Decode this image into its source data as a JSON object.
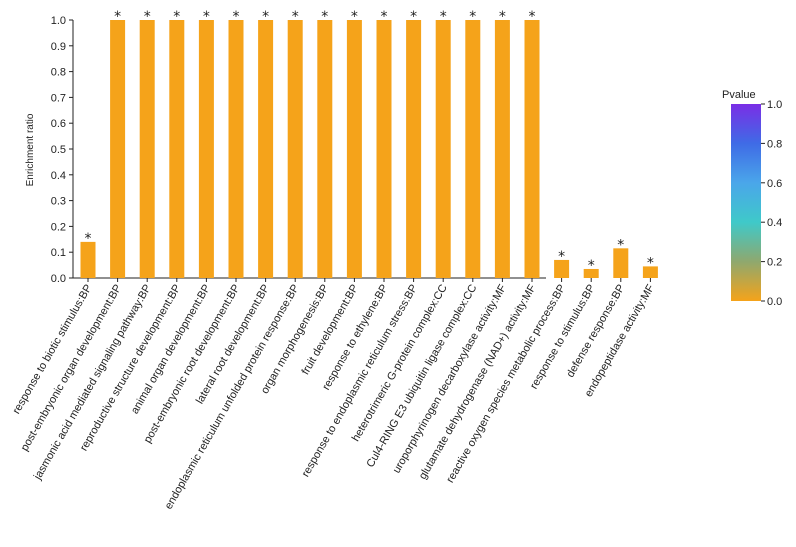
{
  "chart_data": {
    "type": "bar",
    "ylabel": "Enrichment ratio",
    "ylim": [
      0,
      1.0
    ],
    "yticks": [
      "0.0",
      "0.1",
      "0.2",
      "0.3",
      "0.4",
      "0.5",
      "0.6",
      "0.7",
      "0.8",
      "0.9",
      "1.0"
    ],
    "bar_color": "#f5a31a",
    "categories": [
      "response to biotic stimulus:BP",
      "post-embryonic organ development:BP",
      "jasmonic acid mediated signaling pathway:BP",
      "reproductive structure development:BP",
      "animal organ development:BP",
      "post-embryonic root development:BP",
      "lateral root development:BP",
      "endoplasmic reticulum unfolded protein response:BP",
      "organ morphogenesis:BP",
      "fruit development:BP",
      "response to ethylene:BP",
      "response to endoplasmic reticulum stress:BP",
      "heterotrimeric G-protein complex:CC",
      "Cul4-RING E3 ubiquitin ligase complex:CC",
      "uroporphyrinogen decarboxylase activity:MF",
      "glutamate dehydrogenase (NAD+) activity:MF",
      "reactive oxygen species metabolic process:BP",
      "response to stimulus:BP",
      "defense response:BP",
      "endopeptidase activity:MF"
    ],
    "values": [
      0.14,
      1.0,
      1.0,
      1.0,
      1.0,
      1.0,
      1.0,
      1.0,
      1.0,
      1.0,
      1.0,
      1.0,
      1.0,
      1.0,
      1.0,
      1.0,
      0.07,
      0.035,
      0.115,
      0.045
    ],
    "pvalues": [
      0.0,
      0.0,
      0.0,
      0.0,
      0.0,
      0.0,
      0.0,
      0.0,
      0.0,
      0.0,
      0.0,
      0.0,
      0.0,
      0.0,
      0.0,
      0.0,
      0.0,
      0.0,
      0.0,
      0.0
    ],
    "significance_marker": "*",
    "legend": {
      "title": "Pvalue",
      "ticks": [
        "0.0",
        "0.2",
        "0.4",
        "0.6",
        "0.8",
        "1.0"
      ],
      "colors": [
        "#f5a31a",
        "#8fa86e",
        "#3fc9c9",
        "#4aa6ea",
        "#3f6be6",
        "#7a2ee6"
      ],
      "position": "right"
    },
    "grid": false
  }
}
